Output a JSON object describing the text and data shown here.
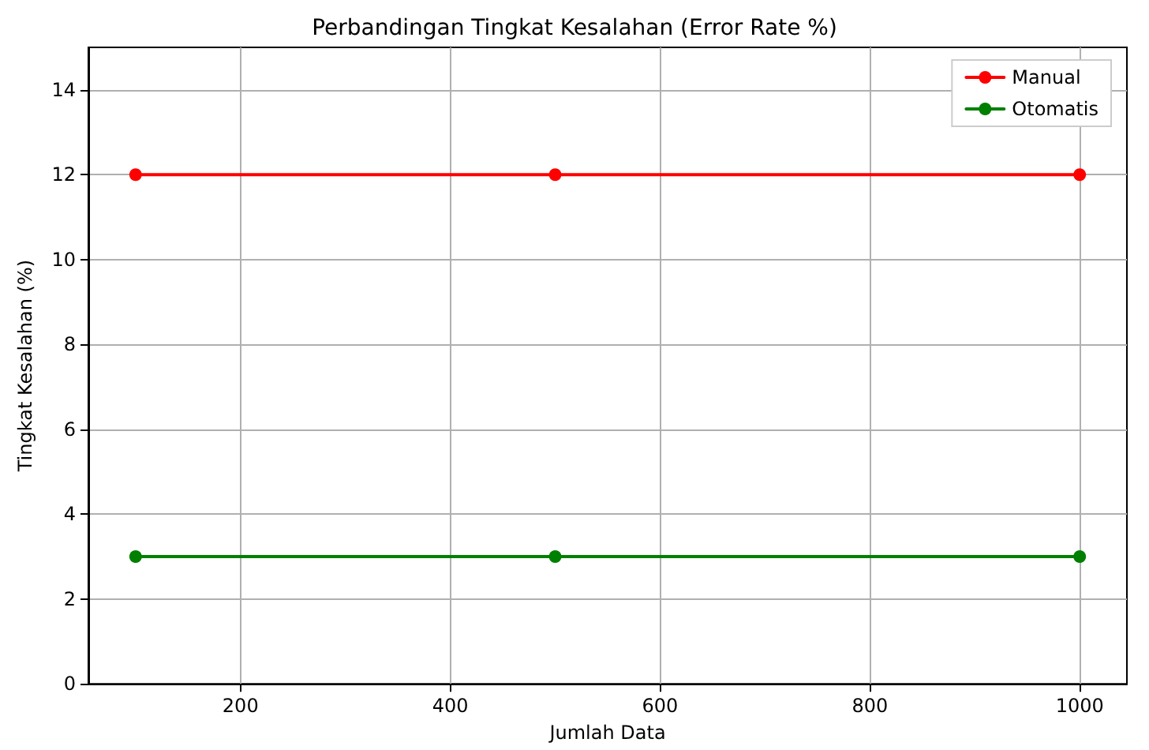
{
  "chart_data": {
    "type": "line",
    "title": "Perbandingan Tingkat Kesalahan (Error Rate %)",
    "xlabel": "Jumlah Data",
    "ylabel": "Tingkat Kesalahan (%)",
    "x": [
      100,
      500,
      1000
    ],
    "series": [
      {
        "name": "Manual",
        "color": "#ff0000",
        "values": [
          12,
          12,
          12
        ]
      },
      {
        "name": "Otomatis",
        "color": "#008000",
        "values": [
          3,
          3,
          3
        ]
      }
    ],
    "xlim": [
      55,
      1045
    ],
    "xticks": [
      200,
      400,
      600,
      800,
      1000
    ],
    "ylim": [
      0,
      15
    ],
    "yticks": [
      0,
      2,
      4,
      6,
      8,
      10,
      12,
      14
    ],
    "grid": true,
    "legend": "top right",
    "marker": "circle",
    "line_style": "solid"
  }
}
